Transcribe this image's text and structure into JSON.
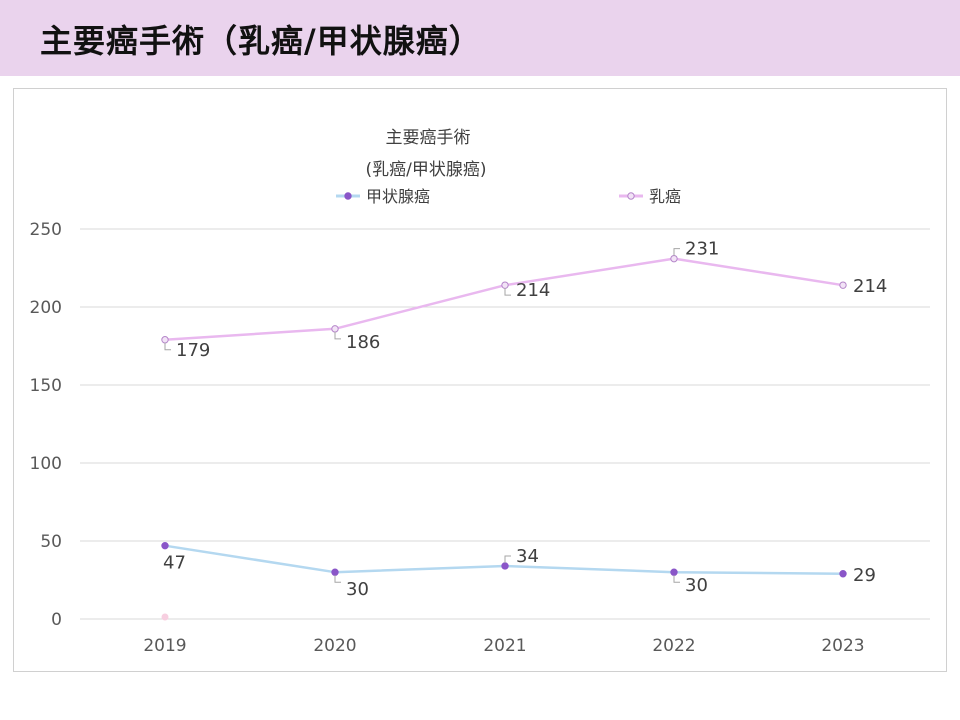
{
  "page": {
    "title": "主要癌手術（乳癌/甲状腺癌）"
  },
  "colors": {
    "header_bg": "#ead3ed",
    "thyroid_line": "#b4d8f0",
    "thyroid_marker": "#8a56c8",
    "breast_line": "#e9b8ef",
    "breast_marker": "#b485c9"
  },
  "chart_data": {
    "type": "line",
    "title": "主要癌手術",
    "subtitle": "(乳癌/甲状腺癌)",
    "categories": [
      "2019",
      "2020",
      "2021",
      "2022",
      "2023"
    ],
    "series": [
      {
        "name": "甲状腺癌",
        "values": [
          47,
          30,
          34,
          30,
          29
        ]
      },
      {
        "name": "乳癌",
        "values": [
          179,
          186,
          214,
          231,
          214
        ]
      }
    ],
    "yticks": [
      "0",
      "50",
      "100",
      "150",
      "200",
      "250"
    ],
    "ylim": [
      0,
      250
    ],
    "grid": true,
    "legend_position": "top"
  }
}
